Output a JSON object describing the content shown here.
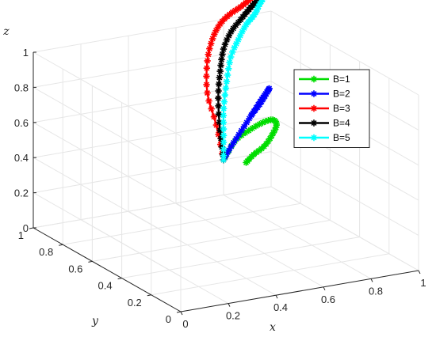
{
  "chart_data": {
    "type": "line3d",
    "xlabel": "x",
    "ylabel": "y",
    "zlabel": "z",
    "xlim": [
      0,
      1
    ],
    "ylim": [
      0,
      1
    ],
    "zlim": [
      0,
      1
    ],
    "x_ticks": [
      "0",
      "0.2",
      "0.4",
      "0.6",
      "0.8",
      "1"
    ],
    "y_ticks": [
      "0",
      "0.2",
      "0.4",
      "0.6",
      "0.8",
      "1"
    ],
    "z_ticks": [
      "0",
      "0.2",
      "0.4",
      "0.6",
      "0.8",
      "1"
    ],
    "grid": true,
    "legend_position": "right",
    "marker": "asterisk",
    "series": [
      {
        "name": "B=1",
        "color": "#00dd00",
        "points": [
          [
            0.35,
            0.95,
            0.55
          ],
          [
            0.42,
            0.93,
            0.62
          ],
          [
            0.5,
            0.92,
            0.66
          ],
          [
            0.58,
            0.91,
            0.69
          ],
          [
            0.64,
            0.9,
            0.7
          ],
          [
            0.66,
            0.9,
            0.68
          ],
          [
            0.63,
            0.91,
            0.64
          ],
          [
            0.58,
            0.93,
            0.6
          ],
          [
            0.52,
            0.94,
            0.57
          ],
          [
            0.47,
            0.96,
            0.54
          ]
        ]
      },
      {
        "name": "B=2",
        "color": "#0000ff",
        "points": [
          [
            0.35,
            0.95,
            0.55
          ],
          [
            0.4,
            0.93,
            0.6
          ],
          [
            0.46,
            0.92,
            0.66
          ],
          [
            0.52,
            0.91,
            0.72
          ],
          [
            0.57,
            0.9,
            0.77
          ],
          [
            0.6,
            0.9,
            0.8
          ],
          [
            0.62,
            0.9,
            0.82
          ],
          [
            0.6,
            0.91,
            0.8
          ],
          [
            0.56,
            0.92,
            0.76
          ],
          [
            0.51,
            0.93,
            0.72
          ]
        ]
      },
      {
        "name": "B=3",
        "color": "#ff0000",
        "points": [
          [
            0.35,
            0.95,
            0.55
          ],
          [
            0.33,
            0.9,
            0.68
          ],
          [
            0.3,
            0.85,
            0.8
          ],
          [
            0.32,
            0.8,
            0.92
          ],
          [
            0.38,
            0.72,
            1.0
          ],
          [
            0.46,
            0.62,
            1.05
          ],
          [
            0.56,
            0.5,
            1.08
          ],
          [
            0.68,
            0.35,
            1.1
          ],
          [
            0.8,
            0.18,
            1.12
          ],
          [
            0.92,
            0.02,
            1.14
          ]
        ]
      },
      {
        "name": "B=4",
        "color": "#000000",
        "points": [
          [
            0.35,
            0.95,
            0.55
          ],
          [
            0.35,
            0.9,
            0.66
          ],
          [
            0.36,
            0.85,
            0.78
          ],
          [
            0.39,
            0.8,
            0.88
          ],
          [
            0.44,
            0.72,
            0.96
          ],
          [
            0.52,
            0.62,
            1.02
          ],
          [
            0.62,
            0.5,
            1.06
          ],
          [
            0.72,
            0.36,
            1.09
          ],
          [
            0.83,
            0.18,
            1.11
          ],
          [
            0.93,
            0.02,
            1.13
          ]
        ]
      },
      {
        "name": "B=5",
        "color": "#00ffff",
        "points": [
          [
            0.35,
            0.95,
            0.55
          ],
          [
            0.37,
            0.9,
            0.64
          ],
          [
            0.39,
            0.85,
            0.74
          ],
          [
            0.43,
            0.79,
            0.84
          ],
          [
            0.48,
            0.72,
            0.93
          ],
          [
            0.56,
            0.62,
            0.99
          ],
          [
            0.65,
            0.5,
            1.04
          ],
          [
            0.75,
            0.36,
            1.07
          ],
          [
            0.85,
            0.18,
            1.1
          ],
          [
            0.94,
            0.02,
            1.12
          ]
        ]
      }
    ]
  }
}
